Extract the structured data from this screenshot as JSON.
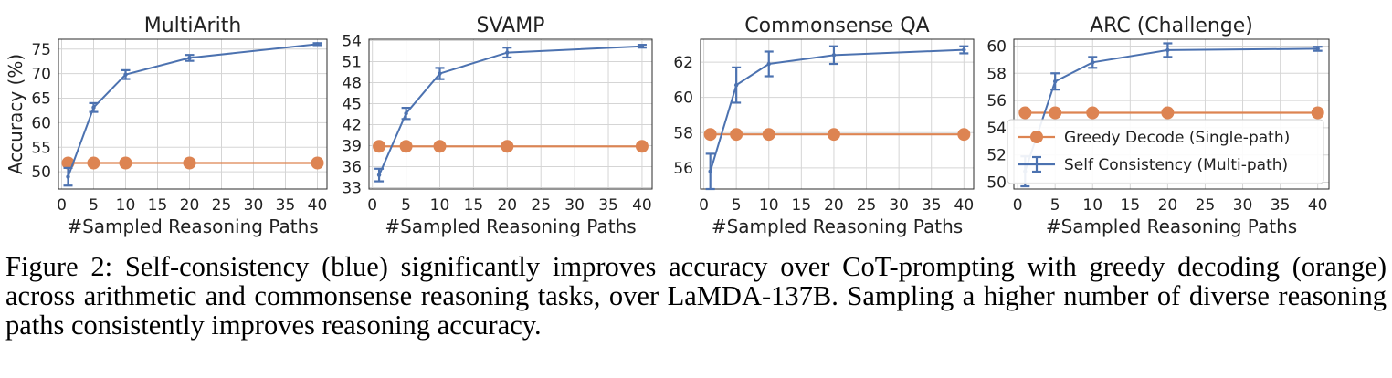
{
  "caption": "Figure 2: Self-consistency (blue) significantly improves accuracy over CoT-prompting with greedy decoding (orange) across arithmetic and commonsense reasoning tasks, over LaMDA-137B. Sampling a higher number of diverse reasoning paths consistently improves reasoning accuracy.",
  "colors": {
    "greedy": "#DD8452",
    "self_consistency": "#4C72B0",
    "grid": "#D5D5D5",
    "spine": "#2B2B2B"
  },
  "chart_data": [
    {
      "type": "line",
      "title": "MultiArith",
      "xlabel": "#Sampled Reasoning Paths",
      "ylabel": "Accuracy (%)",
      "xlim": [
        -0.5,
        41.5
      ],
      "ylim": [
        46.5,
        77
      ],
      "xticks": [
        0,
        5,
        10,
        15,
        20,
        25,
        30,
        35,
        40
      ],
      "yticks": [
        50,
        55,
        60,
        65,
        70,
        75
      ],
      "grid": true,
      "legend": "",
      "series": [
        {
          "name": "Greedy Decode (Single-path)",
          "marker": "circle",
          "x": [
            1,
            5,
            10,
            20,
            40
          ],
          "y": [
            51.8,
            51.8,
            51.8,
            51.8,
            51.8
          ]
        },
        {
          "name": "Self Consistency (Multi-path)",
          "marker": "errorbar",
          "x": [
            1,
            5,
            10,
            20,
            40
          ],
          "y": [
            49.0,
            63.1,
            69.8,
            73.2,
            76.0
          ],
          "err": [
            1.8,
            0.9,
            0.9,
            0.6,
            0.2
          ]
        }
      ]
    },
    {
      "type": "line",
      "title": "SVAMP",
      "xlabel": "#Sampled Reasoning Paths",
      "ylabel": "",
      "xlim": [
        -0.5,
        41.5
      ],
      "ylim": [
        32.8,
        54.2
      ],
      "xticks": [
        0,
        5,
        10,
        15,
        20,
        25,
        30,
        35,
        40
      ],
      "yticks": [
        33,
        36,
        39,
        42,
        45,
        48,
        51,
        54
      ],
      "grid": true,
      "legend": "",
      "series": [
        {
          "name": "Greedy Decode (Single-path)",
          "marker": "circle",
          "x": [
            1,
            5,
            10,
            20,
            40
          ],
          "y": [
            38.9,
            38.9,
            38.9,
            38.9,
            38.9
          ]
        },
        {
          "name": "Self Consistency (Multi-path)",
          "marker": "errorbar",
          "x": [
            1,
            5,
            10,
            20,
            40
          ],
          "y": [
            34.8,
            43.6,
            49.3,
            52.3,
            53.2
          ],
          "err": [
            0.9,
            0.8,
            0.8,
            0.7,
            0.2
          ]
        }
      ]
    },
    {
      "type": "line",
      "title": "Commonsense QA",
      "xlabel": "#Sampled Reasoning Paths",
      "ylabel": "",
      "xlim": [
        -0.5,
        41.5
      ],
      "ylim": [
        54.8,
        63.3
      ],
      "xticks": [
        0,
        5,
        10,
        15,
        20,
        25,
        30,
        35,
        40
      ],
      "yticks": [
        56,
        58,
        60,
        62
      ],
      "grid": true,
      "legend": "",
      "series": [
        {
          "name": "Greedy Decode (Single-path)",
          "marker": "circle",
          "x": [
            1,
            5,
            10,
            20,
            40
          ],
          "y": [
            57.9,
            57.9,
            57.9,
            57.9,
            57.9
          ]
        },
        {
          "name": "Self Consistency (Multi-path)",
          "marker": "errorbar",
          "x": [
            1,
            5,
            10,
            20,
            40
          ],
          "y": [
            55.8,
            60.7,
            61.9,
            62.4,
            62.7
          ],
          "err": [
            1.0,
            1.0,
            0.7,
            0.5,
            0.2
          ]
        }
      ]
    },
    {
      "type": "line",
      "title": "ARC (Challenge)",
      "xlabel": "#Sampled Reasoning Paths",
      "ylabel": "",
      "xlim": [
        -0.5,
        41.5
      ],
      "ylim": [
        49.5,
        60.5
      ],
      "xticks": [
        0,
        5,
        10,
        15,
        20,
        25,
        30,
        35,
        40
      ],
      "yticks": [
        50,
        52,
        54,
        56,
        58,
        60
      ],
      "grid": true,
      "legend": "bottom-right",
      "series": [
        {
          "name": "Greedy Decode (Single-path)",
          "marker": "circle",
          "x": [
            1,
            5,
            10,
            20,
            40
          ],
          "y": [
            55.1,
            55.1,
            55.1,
            55.1,
            55.1
          ]
        },
        {
          "name": "Self Consistency (Multi-path)",
          "marker": "errorbar",
          "x": [
            1,
            5,
            10,
            20,
            40
          ],
          "y": [
            50.8,
            57.4,
            58.8,
            59.7,
            59.8
          ],
          "err": [
            1.1,
            0.6,
            0.4,
            0.5,
            0.15
          ]
        }
      ]
    }
  ]
}
